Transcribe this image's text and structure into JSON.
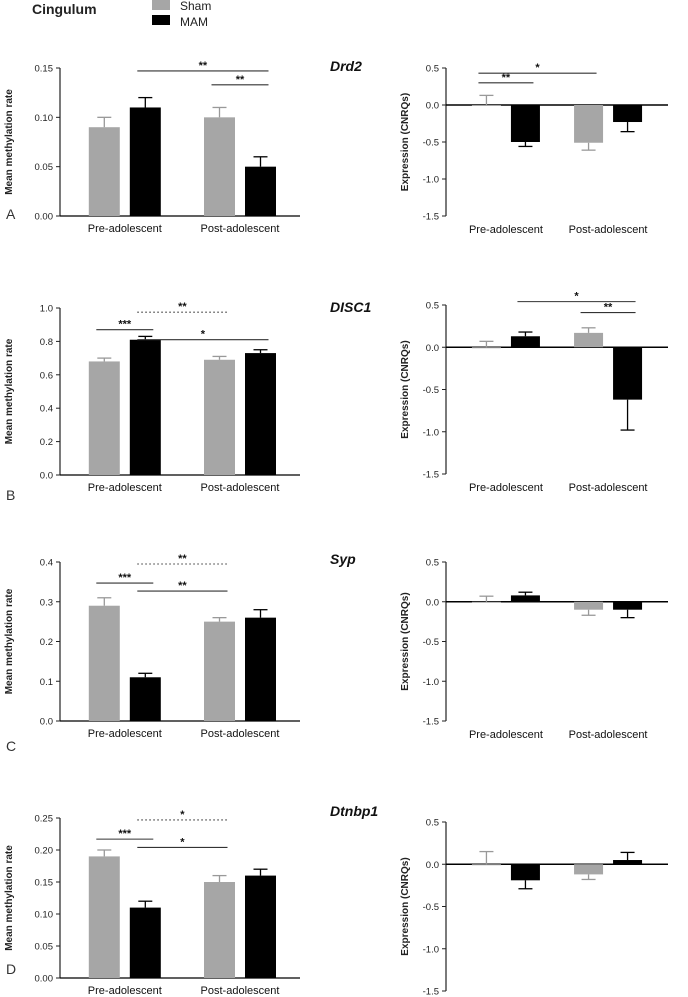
{
  "figure": {
    "region_title": "Cingulum",
    "legend": [
      {
        "label": "Sham",
        "color": "#a6a6a6"
      },
      {
        "label": "MAM",
        "color": "#000000"
      }
    ]
  },
  "chart_data": [
    {
      "type": "bar",
      "panel": "A",
      "gene": "",
      "ylabel": "Mean methylation rate",
      "categories": [
        "Pre-adolescent",
        "Post-adolescent"
      ],
      "ylim": [
        0,
        0.15
      ],
      "yticks": [
        "0.00",
        "0.05",
        "0.10",
        "0.15"
      ],
      "series": [
        {
          "name": "Sham",
          "color": "#a6a6a6",
          "values": [
            0.09,
            0.1
          ],
          "errors": [
            0.01,
            0.01
          ]
        },
        {
          "name": "MAM",
          "color": "#000000",
          "values": [
            0.11,
            0.05
          ],
          "errors": [
            0.01,
            0.01
          ]
        }
      ],
      "annotations": [
        {
          "label": "**",
          "from": [
            1,
            0
          ],
          "to": [
            1,
            1
          ],
          "y": 0.133,
          "style": "solid"
        },
        {
          "label": "**",
          "from": [
            0,
            1
          ],
          "to": [
            1,
            1
          ],
          "y": 0.147,
          "style": "solid"
        }
      ]
    },
    {
      "type": "bar",
      "panel": "",
      "gene": "Drd2",
      "ylabel": "Expression (CNRQs)",
      "categories": [
        "Pre-adolescent",
        "Post-adolescent"
      ],
      "ylim": [
        -1.5,
        0.5
      ],
      "yticks": [
        "-1.5",
        "-1.0",
        "-0.5",
        "0.0",
        "0.5"
      ],
      "series": [
        {
          "name": "Sham",
          "color": "#a6a6a6",
          "values": [
            0.0,
            -0.51
          ],
          "errors": [
            0.13,
            0.1
          ]
        },
        {
          "name": "MAM",
          "color": "#000000",
          "values": [
            -0.5,
            -0.23
          ],
          "errors": [
            0.06,
            0.13
          ]
        }
      ],
      "annotations": [
        {
          "label": "**",
          "from": [
            0,
            0
          ],
          "to": [
            0,
            1
          ],
          "y": 0.3,
          "style": "solid"
        },
        {
          "label": "*",
          "from": [
            0,
            0
          ],
          "to": [
            1,
            0
          ],
          "y": 0.43,
          "style": "solid"
        }
      ]
    },
    {
      "type": "bar",
      "panel": "B",
      "gene": "",
      "ylabel": "Mean methylation rate",
      "categories": [
        "Pre-adolescent",
        "Post-adolescent"
      ],
      "ylim": [
        0,
        1.0
      ],
      "yticks": [
        "0.0",
        "0.2",
        "0.4",
        "0.6",
        "0.8",
        "1.0"
      ],
      "series": [
        {
          "name": "Sham",
          "color": "#a6a6a6",
          "values": [
            0.68,
            0.69
          ],
          "errors": [
            0.02,
            0.02
          ]
        },
        {
          "name": "MAM",
          "color": "#000000",
          "values": [
            0.81,
            0.73
          ],
          "errors": [
            0.02,
            0.02
          ]
        }
      ],
      "annotations": [
        {
          "label": "***",
          "from": [
            0,
            0
          ],
          "to": [
            0,
            1
          ],
          "y": 0.87,
          "style": "solid"
        },
        {
          "label": "*",
          "from": [
            0,
            1
          ],
          "to": [
            1,
            1
          ],
          "y": 0.81,
          "style": "solid"
        },
        {
          "label": "**",
          "from": [
            0,
            1
          ],
          "to": [
            1,
            0
          ],
          "y": 0.975,
          "style": "dotted"
        }
      ]
    },
    {
      "type": "bar",
      "panel": "",
      "gene": "DISC1",
      "ylabel": "Expression (CNRQs)",
      "categories": [
        "Pre-adolescent",
        "Post-adolescent"
      ],
      "ylim": [
        -1.5,
        0.5
      ],
      "yticks": [
        "-1.5",
        "-1.0",
        "-0.5",
        "0.0",
        "0.5"
      ],
      "series": [
        {
          "name": "Sham",
          "color": "#a6a6a6",
          "values": [
            0.0,
            0.17
          ],
          "errors": [
            0.07,
            0.06
          ]
        },
        {
          "name": "MAM",
          "color": "#000000",
          "values": [
            0.13,
            -0.62
          ],
          "errors": [
            0.05,
            0.36
          ]
        }
      ],
      "annotations": [
        {
          "label": "**",
          "from": [
            1,
            0
          ],
          "to": [
            1,
            1
          ],
          "y": 0.41,
          "style": "solid"
        },
        {
          "label": "*",
          "from": [
            0,
            1
          ],
          "to": [
            1,
            1
          ],
          "y": 0.54,
          "style": "solid"
        }
      ]
    },
    {
      "type": "bar",
      "panel": "C",
      "gene": "",
      "ylabel": "Mean methylation rate",
      "categories": [
        "Pre-adolescent",
        "Post-adolescent"
      ],
      "ylim": [
        0,
        0.4
      ],
      "yticks": [
        "0.0",
        "0.1",
        "0.2",
        "0.3",
        "0.4"
      ],
      "series": [
        {
          "name": "Sham",
          "color": "#a6a6a6",
          "values": [
            0.29,
            0.25
          ],
          "errors": [
            0.02,
            0.01
          ]
        },
        {
          "name": "MAM",
          "color": "#000000",
          "values": [
            0.11,
            0.26
          ],
          "errors": [
            0.01,
            0.02
          ]
        }
      ],
      "annotations": [
        {
          "label": "***",
          "from": [
            0,
            0
          ],
          "to": [
            0,
            1
          ],
          "y": 0.347,
          "style": "solid"
        },
        {
          "label": "**",
          "from": [
            0,
            1
          ],
          "to": [
            1,
            0
          ],
          "y": 0.327,
          "style": "solid"
        },
        {
          "label": "**",
          "from": [
            0,
            1
          ],
          "to": [
            1,
            0
          ],
          "y": 0.395,
          "style": "dotted"
        }
      ]
    },
    {
      "type": "bar",
      "panel": "",
      "gene": "Syp",
      "ylabel": "Expression (CNRQs)",
      "categories": [
        "Pre-adolescent",
        "Post-adolescent"
      ],
      "ylim": [
        -1.5,
        0.5
      ],
      "yticks": [
        "-1.5",
        "-1.0",
        "-0.5",
        "0.0",
        "0.5"
      ],
      "series": [
        {
          "name": "Sham",
          "color": "#a6a6a6",
          "values": [
            0.0,
            -0.1
          ],
          "errors": [
            0.07,
            0.07
          ]
        },
        {
          "name": "MAM",
          "color": "#000000",
          "values": [
            0.08,
            -0.1
          ],
          "errors": [
            0.04,
            0.1
          ]
        }
      ],
      "annotations": []
    },
    {
      "type": "bar",
      "panel": "D",
      "gene": "",
      "ylabel": "Mean methylation rate",
      "categories": [
        "Pre-adolescent",
        "Post-adolescent"
      ],
      "ylim": [
        0,
        0.25
      ],
      "yticks": [
        "0.00",
        "0.05",
        "0.10",
        "0.15",
        "0.20",
        "0.25"
      ],
      "series": [
        {
          "name": "Sham",
          "color": "#a6a6a6",
          "values": [
            0.19,
            0.15
          ],
          "errors": [
            0.01,
            0.01
          ]
        },
        {
          "name": "MAM",
          "color": "#000000",
          "values": [
            0.11,
            0.16
          ],
          "errors": [
            0.01,
            0.01
          ]
        }
      ],
      "annotations": [
        {
          "label": "***",
          "from": [
            0,
            0
          ],
          "to": [
            0,
            1
          ],
          "y": 0.217,
          "style": "solid"
        },
        {
          "label": "*",
          "from": [
            0,
            1
          ],
          "to": [
            1,
            0
          ],
          "y": 0.204,
          "style": "solid"
        },
        {
          "label": "*",
          "from": [
            0,
            1
          ],
          "to": [
            1,
            0
          ],
          "y": 0.247,
          "style": "dotted"
        }
      ]
    },
    {
      "type": "bar",
      "panel": "",
      "gene": "Dtnbp1",
      "ylabel": "Expression (CNRQs)",
      "categories": [
        "Pre-adolescent",
        "Post-adolescent"
      ],
      "ylim": [
        -1.5,
        0.5
      ],
      "yticks": [
        "-1.5",
        "-1.0",
        "-0.5",
        "0.0",
        "0.5"
      ],
      "series": [
        {
          "name": "Sham",
          "color": "#a6a6a6",
          "values": [
            0.0,
            -0.12
          ],
          "errors": [
            0.15,
            0.06
          ]
        },
        {
          "name": "MAM",
          "color": "#000000",
          "values": [
            -0.19,
            0.05
          ],
          "errors": [
            0.1,
            0.09
          ]
        }
      ],
      "annotations": []
    }
  ]
}
